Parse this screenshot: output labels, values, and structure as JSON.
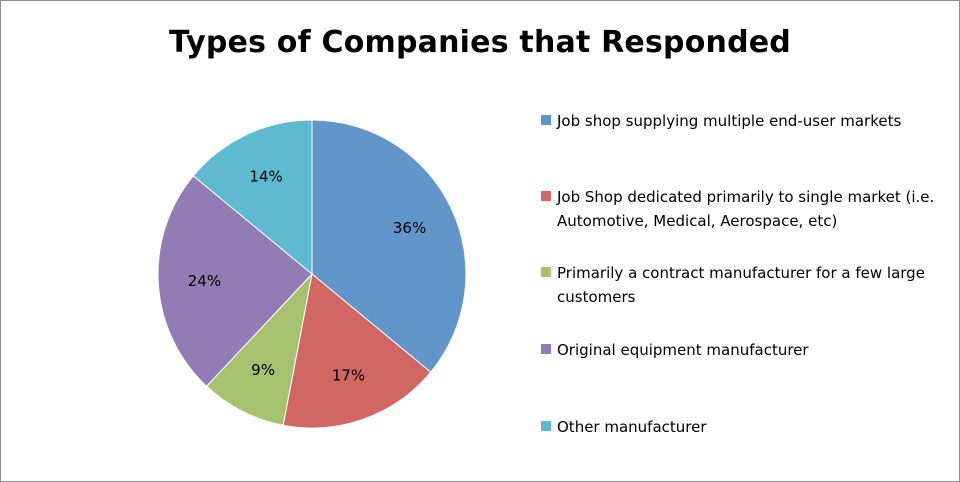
{
  "chart_data": {
    "type": "pie",
    "title": "Types of Companies that Responded",
    "slices": [
      {
        "name": "Job shop supplying multiple end-user markets",
        "value": 36,
        "label": "36%",
        "color": "#6295C9"
      },
      {
        "name": "Job Shop dedicated primarily to single market (i.e. Automotive, Medical, Aerospace, etc)",
        "value": 17,
        "label": "17%",
        "color": "#D06762"
      },
      {
        "name": "Primarily a contract manufacturer for a few large customers",
        "value": 9,
        "label": "9%",
        "color": "#A7C26E"
      },
      {
        "name": "Original equipment manufacturer",
        "value": 24,
        "label": "24%",
        "color": "#927CB3"
      },
      {
        "name": "Other manufacturer",
        "value": 14,
        "label": "14%",
        "color": "#5DBAD1"
      }
    ],
    "legend_position": "right"
  }
}
